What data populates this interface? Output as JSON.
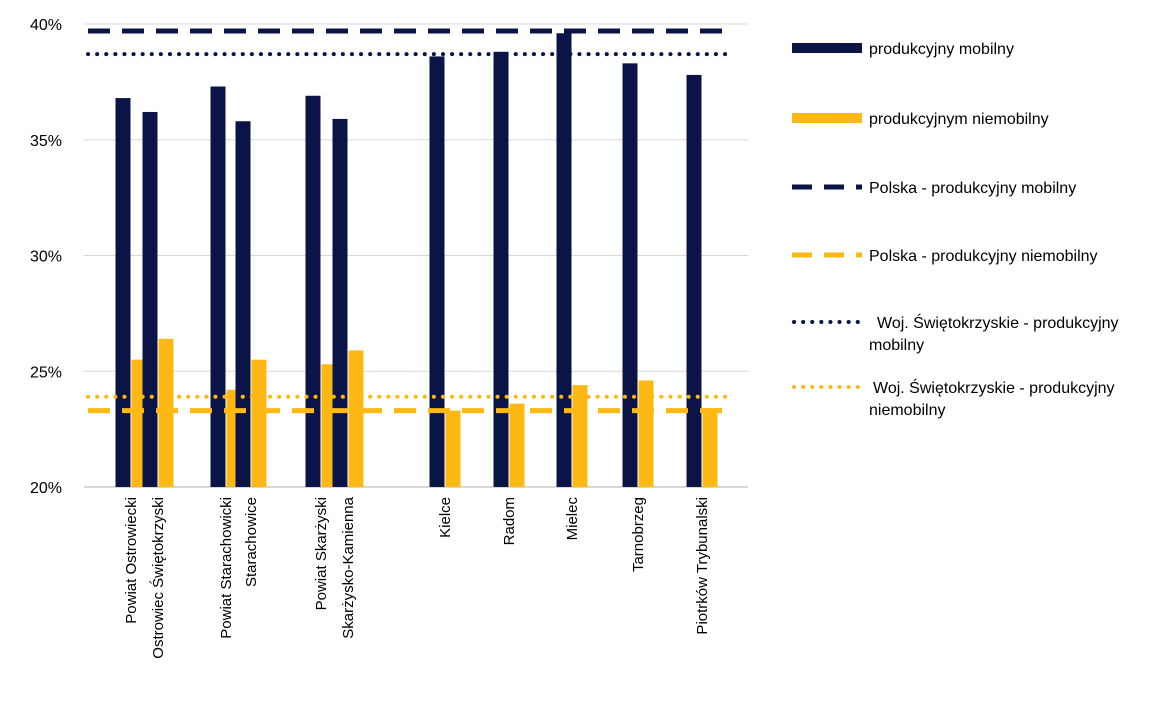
{
  "chart_data": {
    "type": "bar",
    "categories": [
      "Powiat Ostrowiecki",
      "Ostrowiec Świętokrzyski",
      "Powiat Starachowicki",
      "Starachowice",
      "Powiat Skarżyski",
      "Skarżysko-Kamienna",
      "Kielce",
      "Radom",
      "Mielec",
      "Tarnobrzeg",
      "Piotrków Trybunalski"
    ],
    "series": [
      {
        "name": "produkcyjny mobilny",
        "color": "#0b1446",
        "values": [
          36.8,
          36.2,
          37.3,
          35.8,
          36.9,
          35.9,
          38.6,
          38.8,
          39.6,
          38.3,
          37.8
        ]
      },
      {
        "name": "produkcyjnym niemobilny",
        "color": "#fdb813",
        "values": [
          25.5,
          26.4,
          24.2,
          25.5,
          25.3,
          25.9,
          23.3,
          23.6,
          24.4,
          24.6,
          23.4
        ]
      }
    ],
    "reference_lines": [
      {
        "name": "Polska - produkcyjny mobilny",
        "value": 39.7,
        "color": "#0b1446",
        "style": "dashed"
      },
      {
        "name": "Polska - produkcyjny niemobilny",
        "value": 23.3,
        "color": "#fdb813",
        "style": "dashed"
      },
      {
        "name": "Woj. Świętokrzyskie - produkcyjny mobilny",
        "value": 38.7,
        "color": "#0b1446",
        "style": "dotted"
      },
      {
        "name": "Woj. Świętokrzyskie - produkcyjny niemobilny",
        "value": 23.9,
        "color": "#fdb813",
        "style": "dotted"
      }
    ],
    "legend_entries": [
      {
        "label_lines": [
          "produkcyjny mobilny"
        ],
        "color": "#0b1446",
        "style": "solid"
      },
      {
        "label_lines": [
          "produkcyjnym niemobilny"
        ],
        "color": "#fdb813",
        "style": "solid"
      },
      {
        "label_lines": [
          "Polska - produkcyjny mobilny"
        ],
        "color": "#0b1446",
        "style": "dashed"
      },
      {
        "label_lines": [
          "Polska - produkcyjny niemobilny"
        ],
        "color": "#fdb813",
        "style": "dashed"
      },
      {
        "label_lines": [
          "Woj. Świętokrzyskie - produkcyjny",
          "mobilny"
        ],
        "color": "#0b1446",
        "style": "dotted"
      },
      {
        "label_lines": [
          "Woj. Świętokrzyskie - produkcyjny",
          "niemobilny"
        ],
        "color": "#fdb813",
        "style": "dotted"
      }
    ],
    "y_ticks": [
      "20%",
      "25%",
      "30%",
      "35%",
      "40%"
    ],
    "ylim": [
      20,
      40
    ],
    "grid": true,
    "legend_position": "right",
    "title": "",
    "xlabel": "",
    "ylabel": ""
  }
}
